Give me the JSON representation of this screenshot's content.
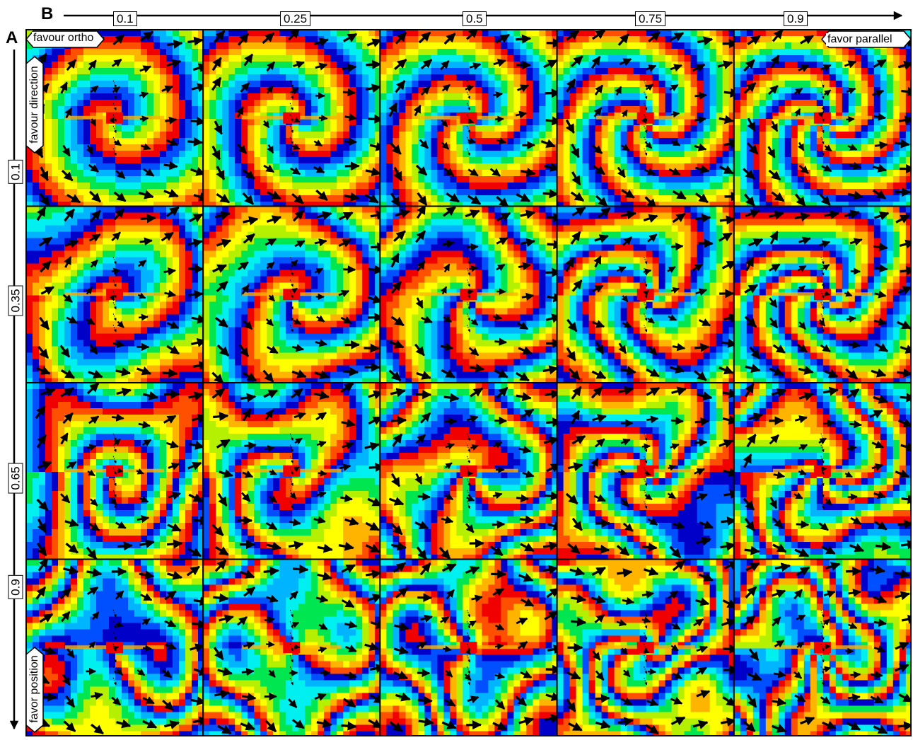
{
  "panel_label_a": "A",
  "panel_label_b": "B",
  "top_axis": {
    "ticks": [
      "0.1",
      "0.25",
      "0.5",
      "0.75",
      "0.9"
    ],
    "left_hint": "favour ortho",
    "right_hint": "favor parallel"
  },
  "left_axis": {
    "ticks": [
      "0.1",
      "0.35",
      "0.65",
      "0.9"
    ],
    "top_hint": "favour direction",
    "bottom_hint": "favor position"
  },
  "colormap": [
    "#0000c8",
    "#0050ff",
    "#00b4ff",
    "#00f0f0",
    "#00e650",
    "#b4f000",
    "#ffff00",
    "#ffb400",
    "#ff5000",
    "#f00000"
  ]
}
